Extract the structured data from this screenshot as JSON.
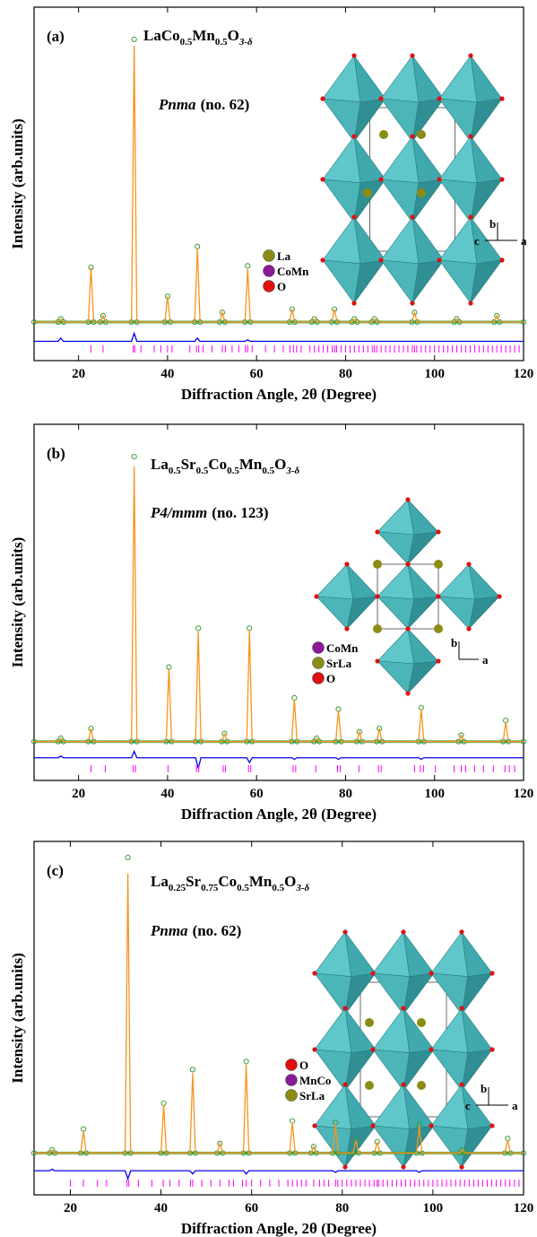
{
  "chart_data": [
    {
      "type": "line",
      "panel_label": "(a)",
      "formula": [
        {
          "text": "LaCo"
        },
        {
          "text": "0.5",
          "sub": true
        },
        {
          "text": "Mn"
        },
        {
          "text": "0.5",
          "sub": true
        },
        {
          "text": "O"
        },
        {
          "text": "3-δ",
          "sub": true
        }
      ],
      "space_group": "Pnma",
      "space_group_no": "(no. 62)",
      "x_label": "Diffraction Angle, 2θ (Degree)",
      "y_label": "Intensity (arb.units)",
      "xlim": [
        10,
        120
      ],
      "xticks": [
        20,
        40,
        60,
        80,
        100,
        120
      ],
      "ylim": [
        -10,
        100
      ],
      "x": [
        10,
        15.4,
        16,
        16.6,
        22.2,
        22.8,
        23.4,
        24.9,
        25.5,
        26.1,
        31.9,
        32.5,
        33.1,
        39.4,
        40,
        40.6,
        46.1,
        46.7,
        47.3,
        51.7,
        52.3,
        52.9,
        57.4,
        58,
        58.6,
        67.4,
        68,
        68.6,
        72.4,
        73,
        73.6,
        76.9,
        77.5,
        78.1,
        81.4,
        82,
        82.6,
        85.9,
        86.5,
        87.1,
        94.9,
        95.5,
        96.1,
        104.4,
        105,
        105.6,
        113.4,
        114,
        114.6,
        120
      ],
      "series": [
        {
          "color": "#3c9a3c",
          "marker": "circle",
          "values": [
            2,
            2,
            3,
            2,
            2,
            19,
            2,
            2,
            4,
            2,
            2,
            90,
            2,
            2,
            10,
            2,
            2,
            25.5,
            2,
            2,
            5,
            2,
            2,
            19.5,
            2,
            2,
            6,
            2,
            2,
            3,
            2,
            2,
            6,
            2,
            2,
            3,
            2,
            2,
            3,
            2,
            2,
            5,
            2,
            2,
            3,
            2,
            2,
            4,
            2,
            2
          ]
        },
        {
          "color": "#f7941d",
          "values": [
            2,
            2,
            3,
            2,
            2,
            19,
            2,
            2,
            4,
            2,
            2,
            88,
            2,
            2,
            10,
            2,
            2,
            25,
            2,
            2,
            5,
            2,
            2,
            18.5,
            2,
            2,
            6,
            2,
            2,
            3,
            2,
            2,
            6,
            2,
            2,
            3,
            2,
            2,
            3,
            2,
            2,
            5,
            2,
            2,
            3,
            2,
            2,
            4,
            2,
            2
          ]
        },
        {
          "color": "#0000ee",
          "values": [
            -4,
            -4,
            -3,
            -4,
            -4,
            -4,
            -4,
            -4,
            -4,
            -4,
            -4,
            -1.5,
            -4,
            -4,
            -4,
            -4,
            -4,
            -3,
            -4,
            -4,
            -4,
            -4,
            -4,
            -3.5,
            -4,
            -4,
            -4,
            -4,
            -4,
            -4,
            -4,
            -4,
            -4,
            -4,
            -4,
            -4,
            -4,
            -4,
            -4,
            -4,
            -4,
            -4,
            -4,
            -4,
            -4,
            -4,
            -4,
            -4,
            -4,
            -4
          ]
        }
      ],
      "bragg_color": "#ff00ff",
      "bragg_positions": [
        22.8,
        25.5,
        32.3,
        32.6,
        34,
        37,
        38.5,
        40,
        41,
        45,
        46.5,
        47,
        48,
        50,
        52.3,
        53,
        54.5,
        56,
        57.5,
        58,
        59,
        62,
        64,
        66,
        67.5,
        68.3,
        69,
        70,
        72,
        73,
        74,
        75,
        76,
        77,
        77.6,
        78,
        79,
        80,
        81,
        82,
        83,
        84,
        85,
        86,
        86.5,
        87,
        88,
        89,
        90,
        91,
        92,
        93,
        94,
        95,
        95.5,
        96,
        97,
        98,
        99,
        100,
        101,
        102,
        103,
        104,
        105,
        106,
        107,
        108,
        109,
        110,
        111,
        112,
        113,
        114,
        115,
        116,
        117,
        118,
        119
      ],
      "inset_legend": [
        {
          "label": "La",
          "color": "#8c8c14"
        },
        {
          "label": "CoMn",
          "color": "#8b1a9a"
        },
        {
          "label": "O",
          "color": "#e01010"
        }
      ],
      "inset_axes": [
        "b",
        "c",
        "a"
      ]
    },
    {
      "type": "line",
      "panel_label": "(b)",
      "formula": [
        {
          "text": "La"
        },
        {
          "text": "0.5",
          "sub": true
        },
        {
          "text": "Sr"
        },
        {
          "text": "0.5",
          "sub": true
        },
        {
          "text": "Co"
        },
        {
          "text": "0.5",
          "sub": true
        },
        {
          "text": "Mn"
        },
        {
          "text": "0.5",
          "sub": true
        },
        {
          "text": "O"
        },
        {
          "text": "3-δ",
          "sub": true
        }
      ],
      "space_group": "P4/mmm",
      "space_group_no": "(no. 123)",
      "x_label": "Diffraction Angle, 2θ (Degree)",
      "y_label": "Intensity (arb.units)",
      "xlim": [
        10,
        120
      ],
      "xticks": [
        20,
        40,
        60,
        80,
        100,
        120
      ],
      "ylim": [
        -10,
        100
      ],
      "x": [
        10,
        15.4,
        16,
        16.6,
        22.2,
        22.8,
        23.4,
        31.9,
        32.5,
        33.1,
        39.7,
        40.3,
        40.9,
        46.3,
        46.9,
        47.5,
        52.2,
        52.8,
        53.4,
        57.8,
        58.4,
        59,
        67.9,
        68.5,
        69.1,
        72.9,
        73.5,
        74.1,
        77.8,
        78.4,
        79,
        82.5,
        83.1,
        83.7,
        87,
        87.6,
        88.2,
        96.4,
        97,
        97.6,
        105.4,
        106,
        106.6,
        115.4,
        116,
        116.6,
        120
      ],
      "series": [
        {
          "color": "#3c9a3c",
          "marker": "circle",
          "values": [
            2,
            2,
            3,
            2,
            2,
            6,
            2,
            2,
            90,
            2,
            2,
            25,
            2,
            2,
            37,
            2,
            2,
            4.5,
            2,
            2,
            37,
            2,
            2,
            15.5,
            2,
            2,
            3,
            2,
            2,
            12,
            2,
            2,
            5,
            2,
            2,
            6,
            2,
            2,
            12.5,
            2,
            2,
            4,
            2,
            2,
            8.5,
            2,
            2
          ]
        },
        {
          "color": "#f7941d",
          "values": [
            2,
            2,
            3,
            2,
            2,
            6,
            2,
            2,
            87,
            2,
            2,
            24.6,
            2,
            2,
            36,
            2,
            2,
            4.4,
            2,
            2,
            36.5,
            2,
            2,
            15,
            2,
            2,
            3,
            2,
            2,
            11.6,
            2,
            2,
            5,
            2,
            2,
            6,
            2,
            2,
            12,
            2,
            2,
            4,
            2,
            2,
            8,
            2,
            2
          ]
        },
        {
          "color": "#0000ee",
          "values": [
            -3,
            -3,
            -2.5,
            -3,
            -3,
            -3,
            -3,
            -3,
            -1,
            -3,
            -3,
            -3,
            -3,
            -3,
            -6.3,
            -3,
            -3,
            -3,
            -3,
            -3,
            -4.5,
            -3,
            -3,
            -3.5,
            -3,
            -3,
            -3,
            -3,
            -3,
            -3.5,
            -3,
            -3,
            -3,
            -3,
            -3,
            -3,
            -3,
            -3,
            -3.5,
            -3,
            -3,
            -3,
            -3,
            -3,
            -3,
            -3,
            -3
          ]
        }
      ],
      "bragg_color": "#ff00ff",
      "bragg_positions": [
        22.8,
        26,
        32.3,
        32.8,
        40.1,
        46.5,
        47,
        52.5,
        53,
        58.2,
        58.7,
        68.2,
        68.8,
        73.3,
        78.2,
        78.8,
        83,
        87.4,
        88,
        95.5,
        96.8,
        97.5,
        100.2,
        104.4,
        106,
        107,
        109,
        111,
        113.2,
        115.8,
        116.8,
        118
      ],
      "inset_legend": [
        {
          "label": "CoMn",
          "color": "#8b1a9a"
        },
        {
          "label": "SrLa",
          "color": "#8c8c14"
        },
        {
          "label": "O",
          "color": "#e01010"
        }
      ],
      "inset_axes": [
        "b",
        "a"
      ]
    },
    {
      "type": "line",
      "panel_label": "(c)",
      "formula": [
        {
          "text": "La"
        },
        {
          "text": "0.25",
          "sub": true
        },
        {
          "text": "Sr"
        },
        {
          "text": "0.75",
          "sub": true
        },
        {
          "text": "Co"
        },
        {
          "text": "0.5",
          "sub": true
        },
        {
          "text": "Mn"
        },
        {
          "text": "0.5",
          "sub": true
        },
        {
          "text": "O"
        },
        {
          "text": "3-δ",
          "sub": true
        }
      ],
      "space_group": "Pnma",
      "space_group_no": "(no. 62)",
      "x_label": "Diffraction Angle, 2θ (Degree)",
      "y_label": "Intensity (arb.units)",
      "xlim": [
        12,
        120
      ],
      "xticks": [
        20,
        40,
        60,
        80,
        100,
        120
      ],
      "ylim": [
        -10,
        100
      ],
      "x": [
        12,
        15.4,
        16,
        16.6,
        22.3,
        22.9,
        23.5,
        32.1,
        32.7,
        33.3,
        40,
        40.6,
        41.2,
        46.4,
        47,
        47.6,
        52.4,
        53,
        53.6,
        58.2,
        58.8,
        59.4,
        68.4,
        69,
        69.6,
        73.1,
        73.7,
        74.3,
        77.9,
        78.5,
        79.1,
        82.4,
        83,
        83.6,
        87.1,
        87.7,
        88.3,
        96.4,
        97,
        97.6,
        105.9,
        106.5,
        107.1,
        115.9,
        116.5,
        117.1,
        120
      ],
      "series": [
        {
          "color": "#3c9a3c",
          "marker": "circle",
          "values": [
            3,
            3,
            4,
            3,
            3,
            10.5,
            3,
            3,
            95,
            3,
            3,
            18.5,
            3,
            3,
            29,
            3,
            3,
            6,
            3,
            3,
            31.5,
            3,
            3,
            13,
            3,
            3,
            5,
            3,
            3,
            12.5,
            3,
            3,
            7,
            3,
            3,
            6.5,
            3,
            3,
            12,
            3,
            3,
            4,
            3,
            3,
            7.5,
            3,
            3
          ]
        },
        {
          "color": "#f7941d",
          "values": [
            3,
            3,
            4,
            3,
            3,
            10,
            3,
            3,
            90,
            3,
            3,
            18,
            3,
            3,
            28,
            3,
            3,
            6,
            3,
            3,
            30.5,
            3,
            3,
            12.5,
            3,
            3,
            5,
            3,
            3,
            12,
            3,
            3,
            7,
            3,
            3,
            6.4,
            3,
            3,
            11.5,
            3,
            3,
            4,
            3,
            3,
            7,
            3,
            3
          ]
        },
        {
          "color": "#0000ee",
          "values": [
            -2.5,
            -2.5,
            -2,
            -2.5,
            -2.5,
            -2.5,
            -2.5,
            -2.5,
            -5,
            -2.5,
            -2.5,
            -2.5,
            -2.5,
            -2.5,
            -3.5,
            -2.5,
            -2.5,
            -2.5,
            -2.5,
            -2.5,
            -3.5,
            -2.5,
            -2.5,
            -2.5,
            -2.5,
            -2.5,
            -2.5,
            -2.5,
            -2.5,
            -3,
            -2.5,
            -2.5,
            -2.5,
            -2.5,
            -2.5,
            -2.5,
            -2.5,
            -2.5,
            -3,
            -2.5,
            -2.5,
            -2.5,
            -2.5,
            -2.5,
            -2.5,
            -2.5,
            -2.5
          ]
        }
      ],
      "bragg_color": "#ff00ff",
      "bragg_positions": [
        20,
        22.9,
        26,
        28,
        32.5,
        32.9,
        35,
        38,
        40.5,
        42,
        44,
        46.5,
        47,
        49,
        51,
        53,
        55,
        56,
        58,
        58.8,
        60,
        62,
        64,
        66,
        68,
        69,
        70,
        71,
        72,
        73.7,
        75,
        76,
        77,
        78.5,
        79,
        80,
        81,
        82,
        83,
        84,
        85,
        86,
        87,
        87.7,
        88,
        89,
        90,
        91,
        92,
        93,
        94,
        95,
        96,
        97,
        98,
        99,
        100,
        101,
        102,
        103,
        104,
        105,
        106,
        107,
        108,
        109,
        110,
        111,
        112,
        113,
        114,
        115,
        116,
        117,
        118,
        119
      ],
      "inset_legend": [
        {
          "label": "O",
          "color": "#e01010"
        },
        {
          "label": "MnCo",
          "color": "#8b1a9a"
        },
        {
          "label": "SrLa",
          "color": "#8c8c14"
        }
      ],
      "inset_axes": [
        "b",
        "c",
        "a"
      ]
    }
  ]
}
